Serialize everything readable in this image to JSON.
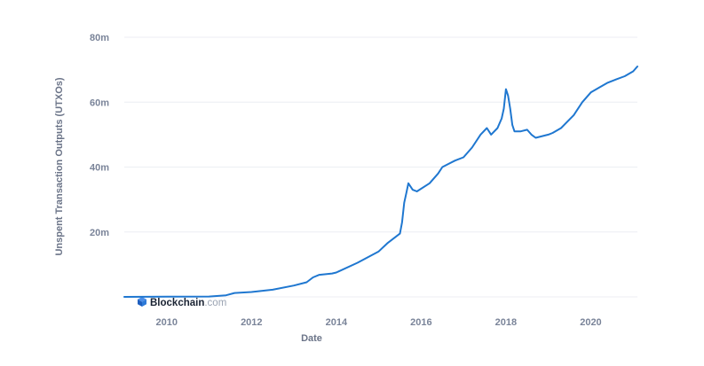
{
  "chart_data": {
    "type": "line",
    "xlabel": "Date",
    "ylabel": "Unspent Transaction Outputs (UTXOs)",
    "x_range": [
      2009.0,
      2021.1
    ],
    "ylim": [
      0,
      80000000
    ],
    "x_ticks": [
      {
        "value": 2010,
        "label": "2010"
      },
      {
        "value": 2012,
        "label": "2012"
      },
      {
        "value": 2014,
        "label": "2014"
      },
      {
        "value": 2016,
        "label": "2016"
      },
      {
        "value": 2018,
        "label": "2018"
      },
      {
        "value": 2020,
        "label": "2020"
      }
    ],
    "y_ticks": [
      {
        "value": 20000000,
        "label": "20m"
      },
      {
        "value": 40000000,
        "label": "40m"
      },
      {
        "value": 60000000,
        "label": "60m"
      },
      {
        "value": 80000000,
        "label": "80m"
      }
    ],
    "grid": true,
    "series": [
      {
        "color": "#1f77d0",
        "x": [
          2009.0,
          2010.0,
          2011.0,
          2011.4,
          2011.6,
          2012.0,
          2012.5,
          2013.0,
          2013.3,
          2013.45,
          2013.6,
          2013.9,
          2014.0,
          2014.5,
          2015.0,
          2015.2,
          2015.5,
          2015.55,
          2015.6,
          2015.65,
          2015.7,
          2015.8,
          2015.9,
          2016.2,
          2016.4,
          2016.5,
          2016.8,
          2017.0,
          2017.2,
          2017.4,
          2017.55,
          2017.65,
          2017.8,
          2017.9,
          2017.95,
          2018.0,
          2018.05,
          2018.1,
          2018.15,
          2018.2,
          2018.35,
          2018.5,
          2018.6,
          2018.7,
          2019.0,
          2019.1,
          2019.3,
          2019.6,
          2019.8,
          2020.0,
          2020.2,
          2020.4,
          2020.6,
          2020.8,
          2021.0,
          2021.1
        ],
        "y": [
          0,
          50000,
          100000,
          500000,
          1200000,
          1500000,
          2200000,
          3500000,
          4500000,
          6000000,
          6800000,
          7200000,
          7500000,
          10500000,
          14000000,
          16500000,
          19500000,
          23000000,
          29000000,
          32000000,
          35000000,
          33000000,
          32500000,
          35000000,
          38000000,
          40000000,
          42000000,
          43000000,
          46000000,
          50000000,
          52000000,
          50000000,
          52000000,
          55000000,
          58000000,
          64000000,
          62000000,
          58000000,
          53000000,
          51000000,
          51000000,
          51500000,
          50000000,
          49000000,
          50000000,
          50500000,
          52000000,
          56000000,
          60000000,
          63000000,
          64500000,
          66000000,
          67000000,
          68000000,
          69500000,
          71000000
        ]
      }
    ]
  },
  "watermark": {
    "brand": "Blockchain",
    "suffix": ".com",
    "icon": "blockchain-cube-icon"
  }
}
